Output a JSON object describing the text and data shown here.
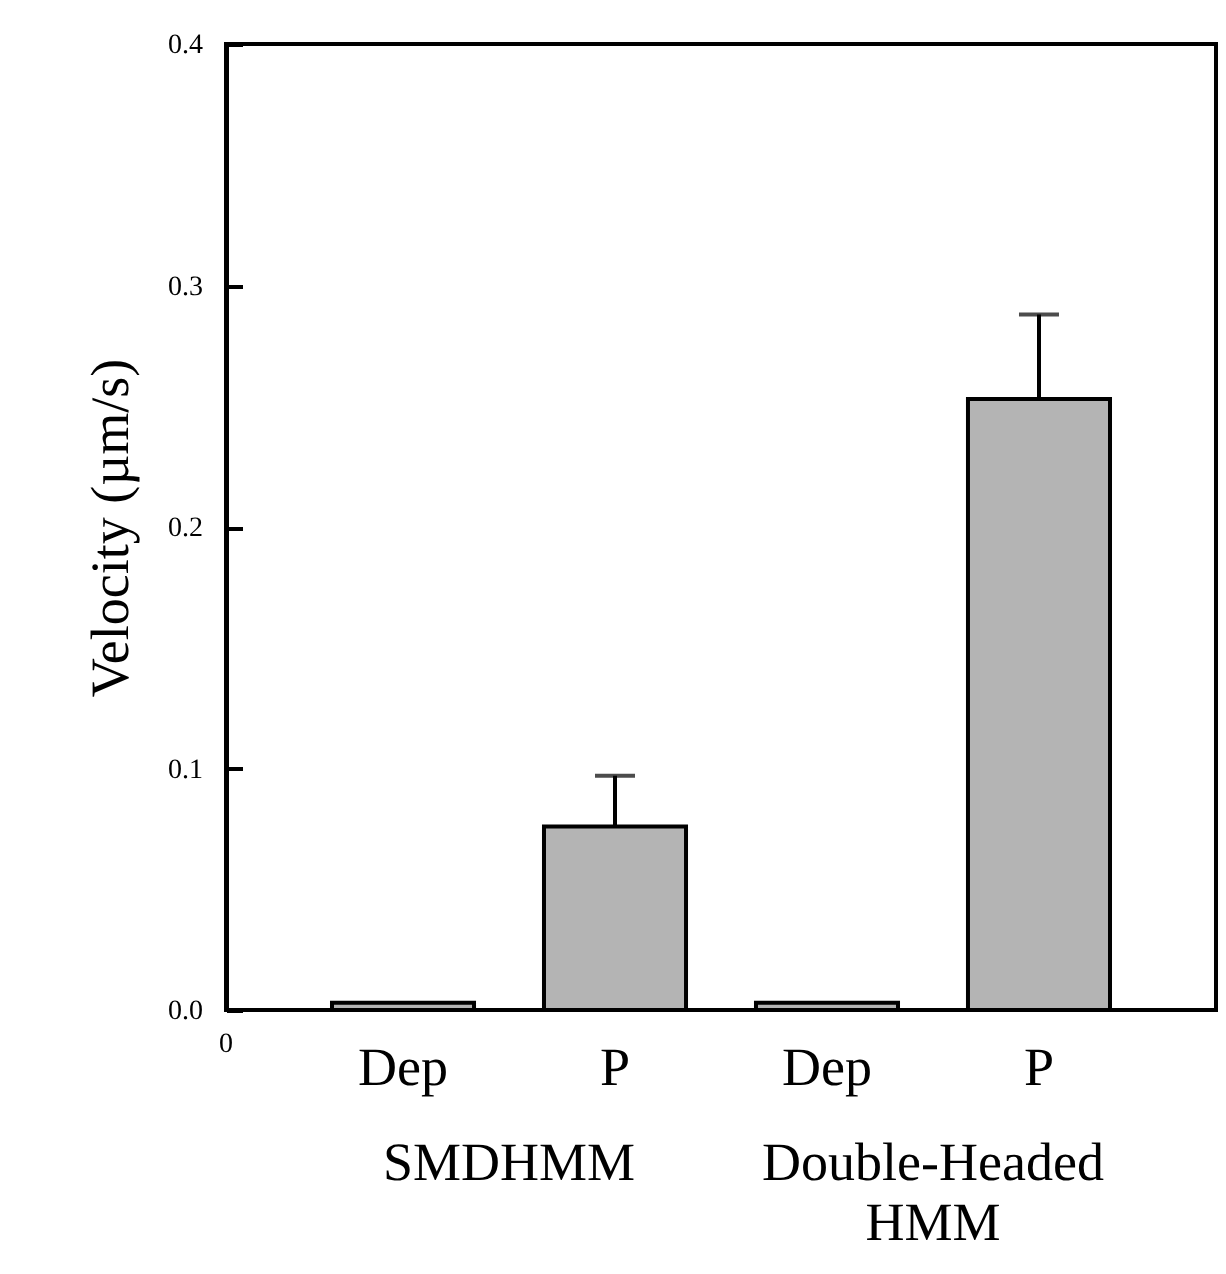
{
  "chart_data": {
    "type": "bar",
    "ylabel": "Velocity (µm/s)",
    "categories": [
      "Dep",
      "P",
      "Dep",
      "P"
    ],
    "values": [
      0.003,
      0.076,
      0.003,
      0.253
    ],
    "errors": [
      null,
      0.021,
      null,
      0.035
    ],
    "color": "#b4b4b4",
    "ylim": [
      0,
      0.4
    ],
    "yticks": [
      {
        "value": 0,
        "label": "0.0"
      },
      0.1,
      0.2,
      0.3,
      0.4
    ],
    "annotations": [
      "0",
      "SMDHMM",
      "Double-Headed HMM"
    ]
  }
}
